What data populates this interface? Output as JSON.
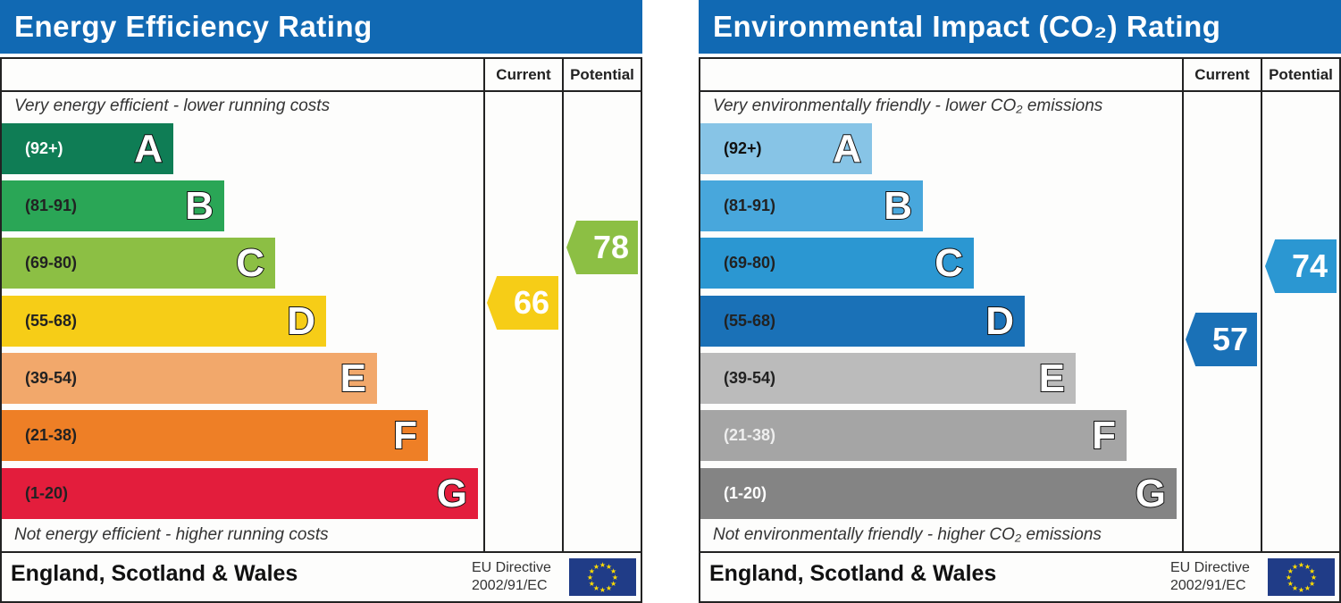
{
  "chart_data": [
    {
      "type": "bar",
      "title": "Energy Efficiency Rating",
      "columns": [
        "Current",
        "Potential"
      ],
      "top_note": "Very energy efficient - lower running costs",
      "bottom_note": "Not energy efficient - higher running costs",
      "bands": [
        {
          "letter": "A",
          "range": "(92+)",
          "color": "#0f7d55",
          "text": "#ffffff"
        },
        {
          "letter": "B",
          "range": "(81-91)",
          "color": "#2aa656",
          "text": "#222222"
        },
        {
          "letter": "C",
          "range": "(69-80)",
          "color": "#8cbf44",
          "text": "#222222"
        },
        {
          "letter": "D",
          "range": "(55-68)",
          "color": "#f6cd17",
          "text": "#222222"
        },
        {
          "letter": "E",
          "range": "(39-54)",
          "color": "#f2a86b",
          "text": "#222222"
        },
        {
          "letter": "F",
          "range": "(21-38)",
          "color": "#ee7f26",
          "text": "#222222"
        },
        {
          "letter": "G",
          "range": "(1-20)",
          "color": "#e31d3c",
          "text": "#222222"
        }
      ],
      "current": {
        "value": "66",
        "band": "D",
        "color": "#f6cd17"
      },
      "potential": {
        "value": "78",
        "band": "C",
        "color": "#8cbf44"
      },
      "footer": "England, Scotland & Wales",
      "directive": [
        "EU Directive",
        "2002/91/EC"
      ]
    },
    {
      "type": "bar",
      "title": "Environmental Impact (CO₂) Rating",
      "columns": [
        "Current",
        "Potential"
      ],
      "top_note": "Very environmentally friendly - lower CO₂ emissions",
      "bottom_note": "Not environmentally friendly - higher CO₂ emissions",
      "bands": [
        {
          "letter": "A",
          "range": "(92+)",
          "color": "#87c4e6",
          "text": "#111111"
        },
        {
          "letter": "B",
          "range": "(81-91)",
          "color": "#48a7dc",
          "text": "#222222"
        },
        {
          "letter": "C",
          "range": "(69-80)",
          "color": "#2b97d2",
          "text": "#222222"
        },
        {
          "letter": "D",
          "range": "(55-68)",
          "color": "#1a71b7",
          "text": "#222222"
        },
        {
          "letter": "E",
          "range": "(39-54)",
          "color": "#bbbbbb",
          "text": "#222222"
        },
        {
          "letter": "F",
          "range": "(21-38)",
          "color": "#a5a5a5",
          "text": "#eeeeee"
        },
        {
          "letter": "G",
          "range": "(1-20)",
          "color": "#848484",
          "text": "#ffffff"
        }
      ],
      "current": {
        "value": "57",
        "band": "D",
        "color": "#1a71b7"
      },
      "potential": {
        "value": "74",
        "band": "C",
        "color": "#2b97d2"
      },
      "footer": "England, Scotland & Wales",
      "directive": [
        "EU Directive",
        "2002/91/EC"
      ]
    }
  ]
}
